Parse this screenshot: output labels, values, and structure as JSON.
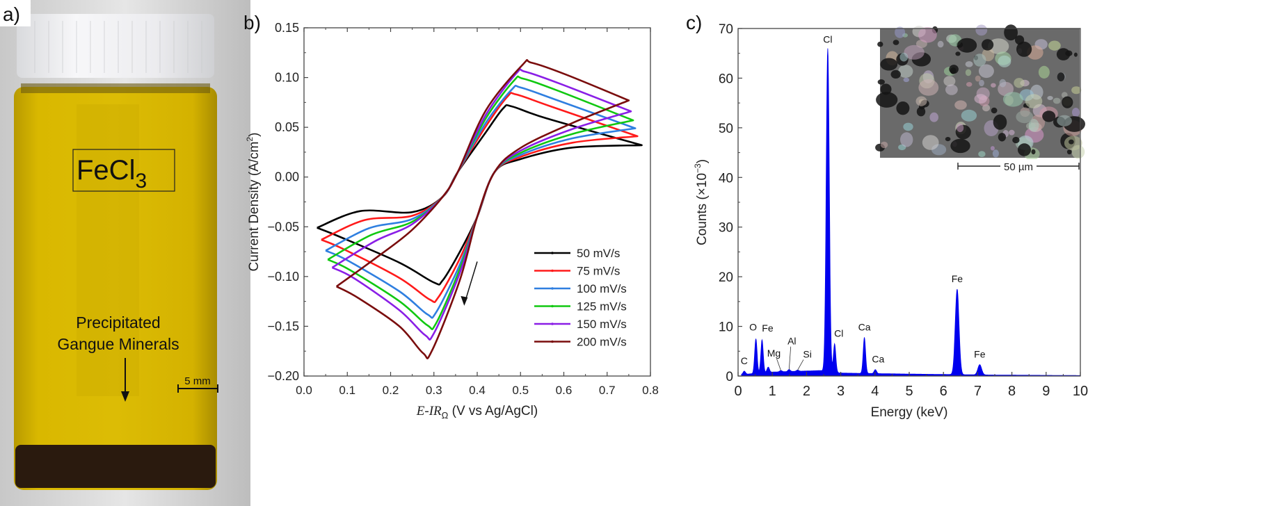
{
  "panels": {
    "a": {
      "label": "a)",
      "chemical_label": "FeCl",
      "chemical_subscript": "3",
      "annotation_line1": "Precipitated",
      "annotation_line2": "Gangue Minerals",
      "scale_bar_label": "5 mm",
      "colors": {
        "solution": "#d4b000",
        "cap": "#f2f3f5",
        "sediment": "#2a1a0e"
      }
    },
    "b": {
      "label": "b)"
    },
    "c": {
      "label": "c)",
      "inset_scale_label": "50 µm"
    }
  },
  "chart_data": [
    {
      "type": "line",
      "title": "",
      "xlabel_italic": "E-IR",
      "xlabel_subscript": "Ω",
      "xlabel_rest": " (V vs Ag/AgCl)",
      "ylabel": "Current Density (A/cm",
      "ylabel_sup": "2",
      "ylabel_end": ")",
      "xlim": [
        0.0,
        0.8
      ],
      "ylim": [
        -0.2,
        0.15
      ],
      "xticks": [
        "0.0",
        "0.1",
        "0.2",
        "0.3",
        "0.4",
        "0.5",
        "0.6",
        "0.7",
        "0.8"
      ],
      "yticks": [
        "0.15",
        "0.10",
        "0.05",
        "0.00",
        "-0.05",
        "-0.10",
        "-0.15",
        "-0.20"
      ],
      "legend_position": "lower-right",
      "annotation": "arrow indicating cathodic scan direction near E=0.37 V",
      "series": [
        {
          "name": "50 mV/s",
          "color": "#000000",
          "E_min": 0.03,
          "E_max": 0.78,
          "i_at_Emin": -0.051,
          "i_at_Emax": 0.032,
          "anodic_peak": [
            0.48,
            0.071
          ],
          "cathodic_peak": [
            0.3,
            -0.106
          ]
        },
        {
          "name": "75 mV/s",
          "color": "#ff1a1a",
          "E_min": 0.04,
          "E_max": 0.77,
          "i_at_Emin": -0.063,
          "i_at_Emax": 0.041,
          "anodic_peak": [
            0.49,
            0.083
          ],
          "cathodic_peak": [
            0.29,
            -0.123
          ]
        },
        {
          "name": "100 mV/s",
          "color": "#2f7fe0",
          "E_min": 0.05,
          "E_max": 0.765,
          "i_at_Emin": -0.074,
          "i_at_Emax": 0.049,
          "anodic_peak": [
            0.5,
            0.09
          ],
          "cathodic_peak": [
            0.285,
            -0.138
          ]
        },
        {
          "name": "125 mV/s",
          "color": "#11c811",
          "E_min": 0.055,
          "E_max": 0.76,
          "i_at_Emin": -0.083,
          "i_at_Emax": 0.057,
          "anodic_peak": [
            0.505,
            0.099
          ],
          "cathodic_peak": [
            0.285,
            -0.149
          ]
        },
        {
          "name": "150 mV/s",
          "color": "#8a1ee6",
          "E_min": 0.065,
          "E_max": 0.755,
          "i_at_Emin": -0.091,
          "i_at_Emax": 0.066,
          "anodic_peak": [
            0.51,
            0.106
          ],
          "cathodic_peak": [
            0.28,
            -0.159
          ]
        },
        {
          "name": "200 mV/s",
          "color": "#7a0d0d",
          "E_min": 0.075,
          "E_max": 0.75,
          "i_at_Emin": -0.11,
          "i_at_Emax": 0.077,
          "anodic_peak": [
            0.525,
            0.115
          ],
          "cathodic_peak": [
            0.275,
            -0.177
          ]
        }
      ]
    },
    {
      "type": "area",
      "title": "",
      "xlabel": "Energy (keV)",
      "ylabel": "Counts (×10",
      "ylabel_sup": "−3",
      "ylabel_end": ")",
      "xlim": [
        0,
        10
      ],
      "ylim": [
        0,
        70
      ],
      "xticks": [
        "0",
        "1",
        "2",
        "3",
        "4",
        "5",
        "6",
        "7",
        "8",
        "9",
        "10"
      ],
      "yticks": [
        "0",
        "10",
        "20",
        "30",
        "40",
        "50",
        "60",
        "70"
      ],
      "color": "#0000ee",
      "peaks": [
        {
          "label": "C",
          "energy": 0.18,
          "counts": 1.0
        },
        {
          "label": "O",
          "energy": 0.52,
          "counts": 7.5
        },
        {
          "label": "Fe",
          "energy": 0.7,
          "counts": 7.3
        },
        {
          "label": "",
          "energy": 0.88,
          "counts": 1.8
        },
        {
          "label": "Mg",
          "energy": 1.25,
          "counts": 1.1
        },
        {
          "label": "Al",
          "energy": 1.49,
          "counts": 1.3
        },
        {
          "label": "Si",
          "energy": 1.74,
          "counts": 1.2
        },
        {
          "label": "Cl",
          "energy": 2.62,
          "counts": 66
        },
        {
          "label": "Cl",
          "energy": 2.82,
          "counts": 6.5
        },
        {
          "label": "Ca",
          "energy": 3.69,
          "counts": 7.8
        },
        {
          "label": "Ca",
          "energy": 4.01,
          "counts": 1.3
        },
        {
          "label": "Fe",
          "energy": 6.4,
          "counts": 17.5
        },
        {
          "label": "Fe",
          "energy": 7.06,
          "counts": 2.3
        }
      ],
      "background": [
        [
          0.1,
          0.3
        ],
        [
          1.0,
          0.8
        ],
        [
          2.4,
          1.1
        ],
        [
          3.0,
          0.6
        ],
        [
          5.0,
          0.4
        ],
        [
          7.5,
          0.2
        ],
        [
          10,
          0.1
        ]
      ]
    }
  ]
}
